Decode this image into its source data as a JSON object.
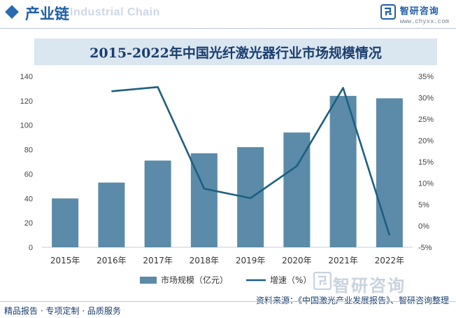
{
  "header": {
    "title": "产业链",
    "watermark": "Industrial Chain",
    "brand_name": "智研咨询",
    "brand_url": "www.chyxx.com"
  },
  "chart_title": "2015-2022年中国光纤激光器行业市场规模情况",
  "chart_data": {
    "type": "bar",
    "title": "2015-2022年中国光纤激光器行业市场规模情况",
    "categories": [
      "2015年",
      "2016年",
      "2017年",
      "2018年",
      "2019年",
      "2020年",
      "2021年",
      "2022年"
    ],
    "series": [
      {
        "name": "市场规模（亿元）",
        "type": "bar",
        "axis": "left",
        "color": "#5b8ba8",
        "values": [
          40,
          53,
          71,
          77,
          82,
          94,
          124,
          122
        ]
      },
      {
        "name": "增速（%）",
        "type": "line",
        "axis": "right",
        "color": "#1d5f80",
        "values": [
          null,
          31.5,
          32.5,
          8.7,
          6.5,
          14,
          32.3,
          -2.2
        ]
      }
    ],
    "y_left": {
      "min": 0,
      "max": 140,
      "ticks": [
        "0",
        "20",
        "40",
        "60",
        "80",
        "100",
        "120",
        "140"
      ]
    },
    "y_right": {
      "min": -5,
      "max": 35,
      "ticks": [
        "-5%",
        "0%",
        "5%",
        "10%",
        "15%",
        "20%",
        "25%",
        "30%",
        "35%"
      ]
    },
    "grid": false,
    "legend_position": "bottom"
  },
  "legend": {
    "bar_label": "市场规模（亿元）",
    "line_label": "增速（%）"
  },
  "footer": {
    "left": "精品报告 · 专项定制 · 品质服务",
    "source": "资料来源：《中国激光产业发展报告》、智研咨询整理",
    "watermark": "智研咨询"
  }
}
